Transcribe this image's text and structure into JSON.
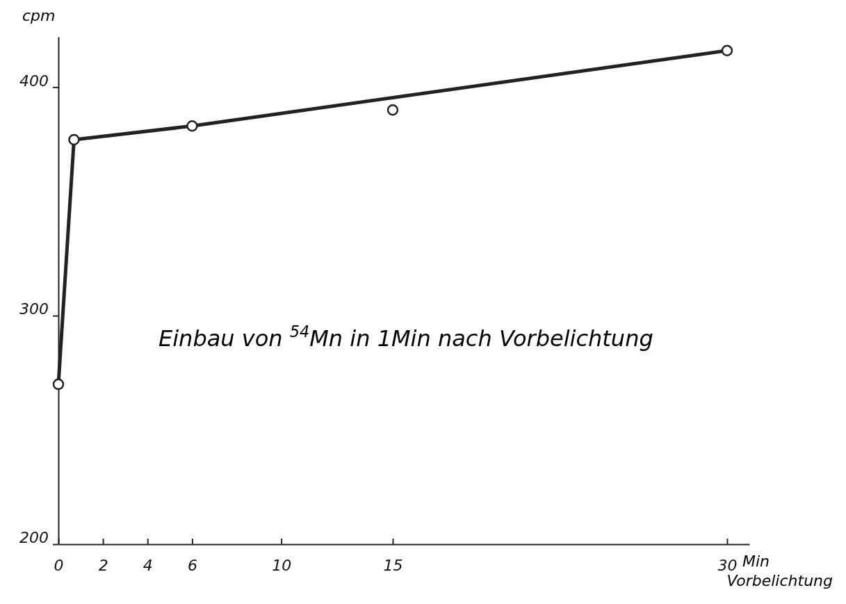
{
  "chart_data": {
    "type": "scatter",
    "ylabel": "cpm",
    "xlabel": "Min Vorbelichtung",
    "xlim": [
      0,
      31
    ],
    "xticks": [
      0,
      2,
      4,
      6,
      10,
      15,
      30
    ],
    "ylim": [
      200,
      422
    ],
    "yticks": [
      200,
      300,
      400
    ],
    "series": [
      {
        "type": "line",
        "color": "#222222",
        "x": [
          0,
          0.7,
          6,
          30
        ],
        "values": [
          270,
          377,
          383,
          416
        ],
        "marker": "none"
      },
      {
        "type": "scatter",
        "color": "#222222",
        "x": [
          0,
          0.7,
          6,
          15,
          30
        ],
        "values": [
          270,
          377,
          383,
          390,
          416
        ],
        "marker": "circle"
      }
    ],
    "annotations": [
      "Einbau von $^{54}$Mn in 1Min nach Vorbelichtung"
    ],
    "grid": false
  }
}
